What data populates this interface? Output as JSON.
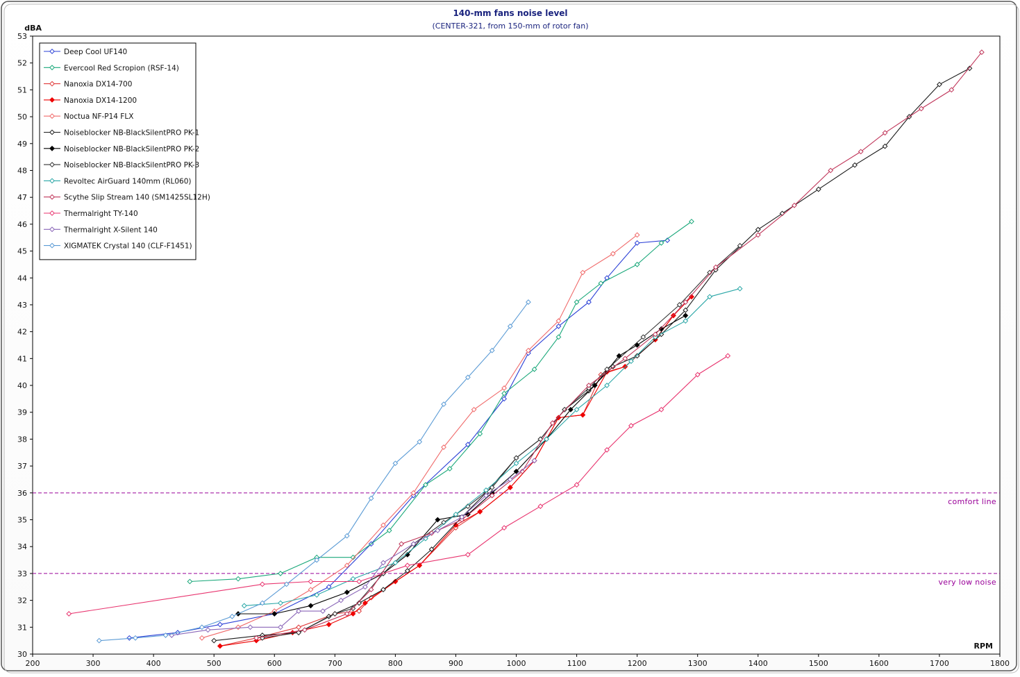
{
  "chart_data": {
    "type": "line",
    "title": "140-mm  fans noise level",
    "subtitle": "(CENTER-321, from 150-mm of rotor fan)",
    "xlabel": "RPM",
    "ylabel": "dBA",
    "xlim": [
      200,
      1800
    ],
    "ylim": [
      30,
      53
    ],
    "x_ticks": [
      "200",
      "300",
      "400",
      "500",
      "600",
      "700",
      "800",
      "900",
      "1000",
      "1100",
      "1200",
      "1300",
      "1400",
      "1500",
      "1600",
      "1700",
      "1800"
    ],
    "y_ticks": [
      "30",
      "31",
      "32",
      "33",
      "34",
      "35",
      "36",
      "37",
      "38",
      "39",
      "40",
      "41",
      "42",
      "43",
      "44",
      "45",
      "46",
      "47",
      "48",
      "49",
      "50",
      "51",
      "52",
      "53"
    ],
    "grid": true,
    "legend_position": "top-left",
    "reference_lines": [
      {
        "label": "comfort line",
        "y": 36,
        "color": "#990099"
      },
      {
        "label": "very  low  noise",
        "y": 33,
        "color": "#990099"
      }
    ],
    "series": [
      {
        "name": "Deep Cool UF140",
        "color": "#2a3fd6",
        "marker": "open",
        "points": [
          [
            360,
            30.6
          ],
          [
            440,
            30.8
          ],
          [
            510,
            31.1
          ],
          [
            600,
            31.5
          ],
          [
            690,
            32.5
          ],
          [
            760,
            34.1
          ],
          [
            830,
            35.9
          ],
          [
            920,
            37.8
          ],
          [
            980,
            39.5
          ],
          [
            1020,
            41.2
          ],
          [
            1070,
            42.2
          ],
          [
            1120,
            43.1
          ],
          [
            1150,
            44.0
          ],
          [
            1200,
            45.3
          ],
          [
            1250,
            45.4
          ]
        ]
      },
      {
        "name": "Evercool Red Scropion (RSF-14)",
        "color": "#1aa87a",
        "marker": "open",
        "points": [
          [
            460,
            32.7
          ],
          [
            540,
            32.8
          ],
          [
            610,
            33.0
          ],
          [
            670,
            33.6
          ],
          [
            730,
            33.6
          ],
          [
            790,
            34.6
          ],
          [
            850,
            36.3
          ],
          [
            890,
            36.9
          ],
          [
            940,
            38.2
          ],
          [
            980,
            39.7
          ],
          [
            1030,
            40.6
          ],
          [
            1070,
            41.8
          ],
          [
            1100,
            43.1
          ],
          [
            1140,
            43.8
          ],
          [
            1200,
            44.5
          ],
          [
            1240,
            45.3
          ],
          [
            1290,
            46.1
          ]
        ]
      },
      {
        "name": "Nanoxia DX14-700",
        "color": "#e03a3a",
        "marker": "open",
        "points": [
          [
            510,
            30.3
          ],
          [
            570,
            30.6
          ],
          [
            640,
            31.0
          ],
          [
            700,
            31.5
          ],
          [
            740,
            31.6
          ],
          [
            760,
            32.1
          ],
          [
            800,
            32.7
          ],
          [
            840,
            33.3
          ],
          [
            900,
            34.7
          ],
          [
            940,
            35.3
          ],
          [
            990,
            36.2
          ],
          [
            1030,
            37.2
          ],
          [
            1070,
            38.8
          ],
          [
            1110,
            38.9
          ],
          [
            1140,
            40.4
          ],
          [
            1180,
            40.7
          ],
          [
            1230,
            41.7
          ],
          [
            1260,
            42.6
          ],
          [
            1290,
            43.3
          ]
        ]
      },
      {
        "name": "Nanoxia DX14-1200",
        "color": "#ee0000",
        "marker": "filled",
        "points": [
          [
            510,
            30.3
          ],
          [
            570,
            30.5
          ],
          [
            630,
            30.8
          ],
          [
            690,
            31.1
          ],
          [
            730,
            31.5
          ],
          [
            750,
            31.9
          ],
          [
            800,
            32.7
          ],
          [
            840,
            33.3
          ],
          [
            900,
            34.8
          ],
          [
            940,
            35.3
          ],
          [
            990,
            36.2
          ],
          [
            1030,
            37.2
          ],
          [
            1070,
            38.8
          ],
          [
            1110,
            38.9
          ],
          [
            1150,
            40.5
          ],
          [
            1180,
            40.7
          ],
          [
            1230,
            41.7
          ],
          [
            1260,
            42.6
          ],
          [
            1290,
            43.3
          ]
        ]
      },
      {
        "name": "Noctua NF-P14 FLX",
        "color": "#f06a6a",
        "marker": "open",
        "points": [
          [
            480,
            30.6
          ],
          [
            540,
            31.0
          ],
          [
            600,
            31.6
          ],
          [
            660,
            32.4
          ],
          [
            720,
            33.3
          ],
          [
            780,
            34.8
          ],
          [
            830,
            36.0
          ],
          [
            880,
            37.7
          ],
          [
            930,
            39.1
          ],
          [
            980,
            39.9
          ],
          [
            1020,
            41.3
          ],
          [
            1070,
            42.4
          ],
          [
            1110,
            44.2
          ],
          [
            1160,
            44.9
          ],
          [
            1200,
            45.6
          ]
        ]
      },
      {
        "name": "Noiseblocker NB-BlackSilentPRO PK-1",
        "color": "#1a1a1a",
        "marker": "open",
        "points": [
          [
            500,
            30.5
          ],
          [
            580,
            30.7
          ],
          [
            640,
            30.8
          ],
          [
            690,
            31.4
          ],
          [
            740,
            31.9
          ],
          [
            780,
            32.4
          ],
          [
            820,
            33.1
          ],
          [
            860,
            33.9
          ],
          [
            910,
            35.1
          ],
          [
            950,
            36.0
          ],
          [
            1000,
            37.3
          ],
          [
            1040,
            38.0
          ],
          [
            1080,
            39.1
          ],
          [
            1120,
            39.8
          ],
          [
            1160,
            40.7
          ],
          [
            1200,
            41.1
          ],
          [
            1240,
            41.9
          ],
          [
            1280,
            42.8
          ],
          [
            1330,
            44.3
          ],
          [
            1400,
            45.8
          ],
          [
            1440,
            46.4
          ],
          [
            1500,
            47.3
          ],
          [
            1560,
            48.2
          ],
          [
            1610,
            48.9
          ],
          [
            1650,
            50.0
          ],
          [
            1700,
            51.2
          ],
          [
            1750,
            51.8
          ]
        ]
      },
      {
        "name": "Noiseblocker NB-BlackSilentPRO PK-2",
        "color": "#000000",
        "marker": "filled",
        "points": [
          [
            540,
            31.5
          ],
          [
            600,
            31.5
          ],
          [
            660,
            31.8
          ],
          [
            720,
            32.3
          ],
          [
            780,
            33.0
          ],
          [
            820,
            33.7
          ],
          [
            870,
            35.0
          ],
          [
            920,
            35.2
          ],
          [
            960,
            36.0
          ],
          [
            1000,
            36.8
          ],
          [
            1050,
            38.0
          ],
          [
            1090,
            39.1
          ],
          [
            1130,
            40.0
          ],
          [
            1170,
            41.1
          ],
          [
            1200,
            41.5
          ],
          [
            1240,
            42.1
          ],
          [
            1280,
            42.6
          ]
        ]
      },
      {
        "name": "Noiseblocker NB-BlackSilentPRO PK-3",
        "color": "#333333",
        "marker": "open",
        "points": [
          [
            580,
            30.6
          ],
          [
            640,
            30.8
          ],
          [
            700,
            31.5
          ],
          [
            730,
            31.7
          ],
          [
            780,
            33.0
          ],
          [
            830,
            34.1
          ],
          [
            880,
            34.9
          ],
          [
            920,
            35.5
          ],
          [
            960,
            36.2
          ],
          [
            1000,
            37.3
          ],
          [
            1040,
            38.0
          ],
          [
            1080,
            39.1
          ],
          [
            1120,
            39.9
          ],
          [
            1150,
            40.6
          ],
          [
            1210,
            41.8
          ],
          [
            1270,
            43.0
          ],
          [
            1320,
            44.2
          ],
          [
            1370,
            45.2
          ]
        ]
      },
      {
        "name": "Revoltec AirGuard 140mm (RL060)",
        "color": "#2aa7a7",
        "marker": "open",
        "points": [
          [
            550,
            31.8
          ],
          [
            610,
            31.9
          ],
          [
            670,
            32.2
          ],
          [
            730,
            32.8
          ],
          [
            800,
            33.4
          ],
          [
            850,
            34.3
          ],
          [
            900,
            35.2
          ],
          [
            950,
            36.1
          ],
          [
            1000,
            37.1
          ],
          [
            1050,
            38.0
          ],
          [
            1100,
            39.1
          ],
          [
            1150,
            40.0
          ],
          [
            1190,
            40.9
          ],
          [
            1230,
            41.8
          ],
          [
            1280,
            42.4
          ],
          [
            1320,
            43.3
          ],
          [
            1370,
            43.6
          ]
        ]
      },
      {
        "name": "Scythe Slip Stream 140 (SM1425SL12H)",
        "color": "#c0365a",
        "marker": "open",
        "points": [
          [
            570,
            30.6
          ],
          [
            650,
            30.9
          ],
          [
            720,
            31.5
          ],
          [
            760,
            32.4
          ],
          [
            810,
            34.1
          ],
          [
            860,
            34.5
          ],
          [
            910,
            35.0
          ],
          [
            960,
            35.9
          ],
          [
            1010,
            36.8
          ],
          [
            1060,
            38.6
          ],
          [
            1120,
            40.0
          ],
          [
            1180,
            41.0
          ],
          [
            1230,
            41.9
          ],
          [
            1280,
            43.1
          ],
          [
            1330,
            44.4
          ],
          [
            1400,
            45.6
          ],
          [
            1460,
            46.7
          ],
          [
            1520,
            48.0
          ],
          [
            1570,
            48.7
          ],
          [
            1610,
            49.4
          ],
          [
            1670,
            50.3
          ],
          [
            1720,
            51.0
          ],
          [
            1770,
            52.4
          ]
        ]
      },
      {
        "name": "Thermalright TY-140",
        "color": "#e8336e",
        "marker": "open",
        "points": [
          [
            260,
            31.5
          ],
          [
            580,
            32.6
          ],
          [
            660,
            32.7
          ],
          [
            740,
            32.7
          ],
          [
            820,
            33.3
          ],
          [
            920,
            33.7
          ],
          [
            980,
            34.7
          ],
          [
            1040,
            35.5
          ],
          [
            1100,
            36.3
          ],
          [
            1150,
            37.6
          ],
          [
            1190,
            38.5
          ],
          [
            1240,
            39.1
          ],
          [
            1300,
            40.4
          ],
          [
            1350,
            41.1
          ]
        ]
      },
      {
        "name": "Thermalright X-Silent 140",
        "color": "#8a66b8",
        "marker": "open",
        "points": [
          [
            430,
            30.7
          ],
          [
            490,
            30.9
          ],
          [
            560,
            31.0
          ],
          [
            610,
            31.0
          ],
          [
            640,
            31.6
          ],
          [
            680,
            31.6
          ],
          [
            710,
            32.0
          ],
          [
            750,
            32.5
          ],
          [
            780,
            33.4
          ],
          [
            830,
            34.1
          ],
          [
            870,
            34.6
          ],
          [
            910,
            35.1
          ],
          [
            950,
            35.9
          ],
          [
            990,
            36.5
          ],
          [
            1030,
            37.2
          ]
        ]
      },
      {
        "name": "XIGMATEK Crystal 140 (CLF-F1451)",
        "color": "#5b9bd5",
        "marker": "open",
        "points": [
          [
            310,
            30.5
          ],
          [
            370,
            30.6
          ],
          [
            420,
            30.7
          ],
          [
            480,
            31.0
          ],
          [
            530,
            31.4
          ],
          [
            580,
            31.9
          ],
          [
            620,
            32.6
          ],
          [
            670,
            33.5
          ],
          [
            720,
            34.4
          ],
          [
            760,
            35.8
          ],
          [
            800,
            37.1
          ],
          [
            840,
            37.9
          ],
          [
            880,
            39.3
          ],
          [
            920,
            40.3
          ],
          [
            960,
            41.3
          ],
          [
            990,
            42.2
          ],
          [
            1020,
            43.1
          ]
        ]
      }
    ]
  }
}
